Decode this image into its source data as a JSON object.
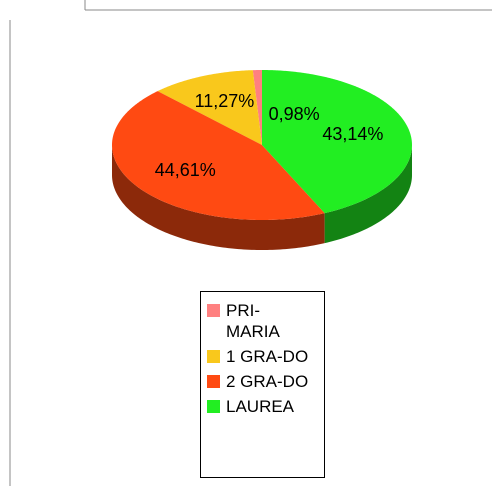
{
  "chart_data": {
    "type": "pie",
    "categories": [
      "PRI-MARIA",
      "1 GRA-DO",
      "2 GRA-DO",
      "LAUREA"
    ],
    "values": [
      0.98,
      11.27,
      44.61,
      43.14
    ],
    "value_labels": [
      "0,98%",
      "11,27%",
      "44,61%",
      "43,14%"
    ],
    "colors": [
      "#ff8080",
      "#f9c81c",
      "#ff4a12",
      "#22ee22"
    ],
    "legend": "bottom"
  }
}
